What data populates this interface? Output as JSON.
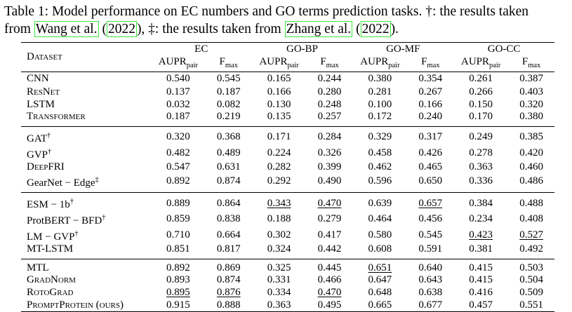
{
  "caption": {
    "line1": "Table 1: Model performance on EC numbers and GO terms prediction tasks. †: the results taken",
    "line2_prefix": "from ",
    "cite1_author": "Wang et al.",
    "cite1_year_open": " (",
    "cite1_year": "2022",
    "cite1_year_close": "), ‡: the results taken from ",
    "cite2_author": "Zhang et al.",
    "cite2_year_open": " (",
    "cite2_year": "2022",
    "cite2_year_close": ")."
  },
  "header": {
    "dataset_label": "Dataset",
    "groups": [
      "EC",
      "GO-BP",
      "GO-MF",
      "GO-CC"
    ],
    "metric_aupr_main": "AUPR",
    "metric_aupr_sub": "pair",
    "metric_fmax_main": "F",
    "metric_fmax_sub": "max"
  },
  "rows": [
    {
      "name": "CNN",
      "sc": false,
      "mark": "",
      "values": [
        "0.540",
        "0.545",
        "0.165",
        "0.244",
        "0.380",
        "0.354",
        "0.261",
        "0.387"
      ],
      "underline": [],
      "bold": false
    },
    {
      "name": "ResNet",
      "sc": true,
      "mark": "",
      "values": [
        "0.137",
        "0.187",
        "0.166",
        "0.280",
        "0.281",
        "0.267",
        "0.266",
        "0.403"
      ],
      "underline": [],
      "bold": false
    },
    {
      "name": "LSTM",
      "sc": false,
      "mark": "",
      "values": [
        "0.032",
        "0.082",
        "0.130",
        "0.248",
        "0.100",
        "0.166",
        "0.150",
        "0.320"
      ],
      "underline": [],
      "bold": false
    },
    {
      "name": "Transformer",
      "sc": true,
      "mark": "",
      "values": [
        "0.187",
        "0.219",
        "0.135",
        "0.257",
        "0.172",
        "0.240",
        "0.170",
        "0.380"
      ],
      "underline": [],
      "bold": false
    },
    {
      "name": "GAT",
      "sc": false,
      "mark": "†",
      "values": [
        "0.320",
        "0.368",
        "0.171",
        "0.284",
        "0.329",
        "0.317",
        "0.249",
        "0.385"
      ],
      "underline": [],
      "bold": false
    },
    {
      "name": "GVP",
      "sc": false,
      "mark": "†",
      "values": [
        "0.482",
        "0.489",
        "0.224",
        "0.326",
        "0.458",
        "0.426",
        "0.278",
        "0.420"
      ],
      "underline": [],
      "bold": false
    },
    {
      "name": "DeepFRI",
      "sc": true,
      "mark": "",
      "values": [
        "0.547",
        "0.631",
        "0.282",
        "0.399",
        "0.462",
        "0.465",
        "0.363",
        "0.460"
      ],
      "underline": [],
      "bold": false
    },
    {
      "name": "GearNet − Edge",
      "sc": false,
      "mark": "‡",
      "values": [
        "0.892",
        "0.874",
        "0.292",
        "0.490",
        "0.596",
        "0.650",
        "0.336",
        "0.486"
      ],
      "underline": [],
      "bold": false
    },
    {
      "name": "ESM − 1b",
      "sc": false,
      "mark": "†",
      "values": [
        "0.889",
        "0.864",
        "0.343",
        "0.470",
        "0.639",
        "0.657",
        "0.384",
        "0.488"
      ],
      "underline": [
        2,
        3,
        5
      ],
      "bold": false
    },
    {
      "name": "ProtBERT − BFD",
      "sc": false,
      "mark": "†",
      "values": [
        "0.859",
        "0.838",
        "0.188",
        "0.279",
        "0.464",
        "0.456",
        "0.234",
        "0.408"
      ],
      "underline": [],
      "bold": false
    },
    {
      "name": "LM − GVP",
      "sc": false,
      "mark": "†",
      "values": [
        "0.710",
        "0.664",
        "0.302",
        "0.417",
        "0.580",
        "0.545",
        "0.423",
        "0.527"
      ],
      "underline": [
        6,
        7
      ],
      "bold": false
    },
    {
      "name": "MT-LSTM",
      "sc": false,
      "mark": "",
      "values": [
        "0.851",
        "0.817",
        "0.324",
        "0.442",
        "0.608",
        "0.591",
        "0.381",
        "0.492"
      ],
      "underline": [],
      "bold": false
    },
    {
      "name": "MTL",
      "sc": false,
      "mark": "",
      "values": [
        "0.892",
        "0.869",
        "0.325",
        "0.445",
        "0.651",
        "0.640",
        "0.415",
        "0.503"
      ],
      "underline": [
        4
      ],
      "bold": false
    },
    {
      "name": "GradNorm",
      "sc": true,
      "mark": "",
      "values": [
        "0.893",
        "0.874",
        "0.331",
        "0.466",
        "0.647",
        "0.643",
        "0.415",
        "0.504"
      ],
      "underline": [],
      "bold": false
    },
    {
      "name": "RotoGrad",
      "sc": true,
      "mark": "",
      "values": [
        "0.895",
        "0.876",
        "0.334",
        "0.470",
        "0.648",
        "0.638",
        "0.416",
        "0.509"
      ],
      "underline": [
        0,
        1,
        3
      ],
      "bold": false
    },
    {
      "name": "PromptProtein (ours)",
      "sc": true,
      "mark": "",
      "values": [
        "0.915",
        "0.888",
        "0.363",
        "0.495",
        "0.665",
        "0.677",
        "0.457",
        "0.551"
      ],
      "underline": [],
      "bold": true
    }
  ],
  "groups_after": [
    3,
    7,
    11
  ]
}
